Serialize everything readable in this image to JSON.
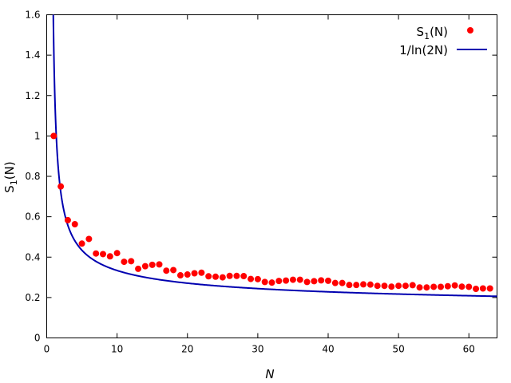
{
  "chart_data": {
    "type": "scatter",
    "xlabel": "N",
    "ylabel": "S",
    "ylabel_sub": "1",
    "ylabel_tail": "(N)",
    "xlim": [
      0,
      64
    ],
    "ylim": [
      0,
      1.6
    ],
    "x_ticks": [
      0,
      10,
      20,
      30,
      40,
      50,
      60
    ],
    "y_ticks": [
      0,
      0.2,
      0.4,
      0.6,
      0.8,
      1,
      1.2,
      1.4,
      1.6
    ],
    "y_tick_labels": [
      "0",
      "0.2",
      "0.4",
      "0.6",
      "0.8",
      "1",
      "1.2",
      "1.4",
      "1.6"
    ],
    "grid": false,
    "legend_position": "top-right",
    "series": [
      {
        "name": "S",
        "name_sub": "1",
        "name_tail": "(N)",
        "kind": "points",
        "color": "#ff0000",
        "x": [
          1,
          2,
          3,
          4,
          5,
          6,
          7,
          8,
          9,
          10,
          11,
          12,
          13,
          14,
          15,
          16,
          17,
          18,
          19,
          20,
          21,
          22,
          23,
          24,
          25,
          26,
          27,
          28,
          29,
          30,
          31,
          32,
          33,
          34,
          35,
          36,
          37,
          38,
          39,
          40,
          41,
          42,
          43,
          44,
          45,
          46,
          47,
          48,
          49,
          50,
          51,
          52,
          53,
          54,
          55,
          56,
          57,
          58,
          59,
          60,
          61,
          62,
          63
        ],
        "y": [
          1.0,
          0.75,
          0.583,
          0.563,
          0.467,
          0.49,
          0.418,
          0.415,
          0.404,
          0.42,
          0.377,
          0.38,
          0.342,
          0.355,
          0.362,
          0.364,
          0.333,
          0.336,
          0.31,
          0.314,
          0.32,
          0.323,
          0.305,
          0.303,
          0.3,
          0.307,
          0.307,
          0.306,
          0.292,
          0.291,
          0.277,
          0.274,
          0.282,
          0.284,
          0.288,
          0.288,
          0.277,
          0.281,
          0.285,
          0.283,
          0.272,
          0.272,
          0.262,
          0.262,
          0.265,
          0.264,
          0.258,
          0.258,
          0.254,
          0.258,
          0.258,
          0.261,
          0.25,
          0.25,
          0.253,
          0.253,
          0.256,
          0.26,
          0.254,
          0.253,
          0.243,
          0.245,
          0.245
        ]
      },
      {
        "name": "1/ln(2N)",
        "kind": "line",
        "color": "#0000b0",
        "function": "1/ln(2N)",
        "x_start": 0.82,
        "x_end": 64
      }
    ]
  }
}
